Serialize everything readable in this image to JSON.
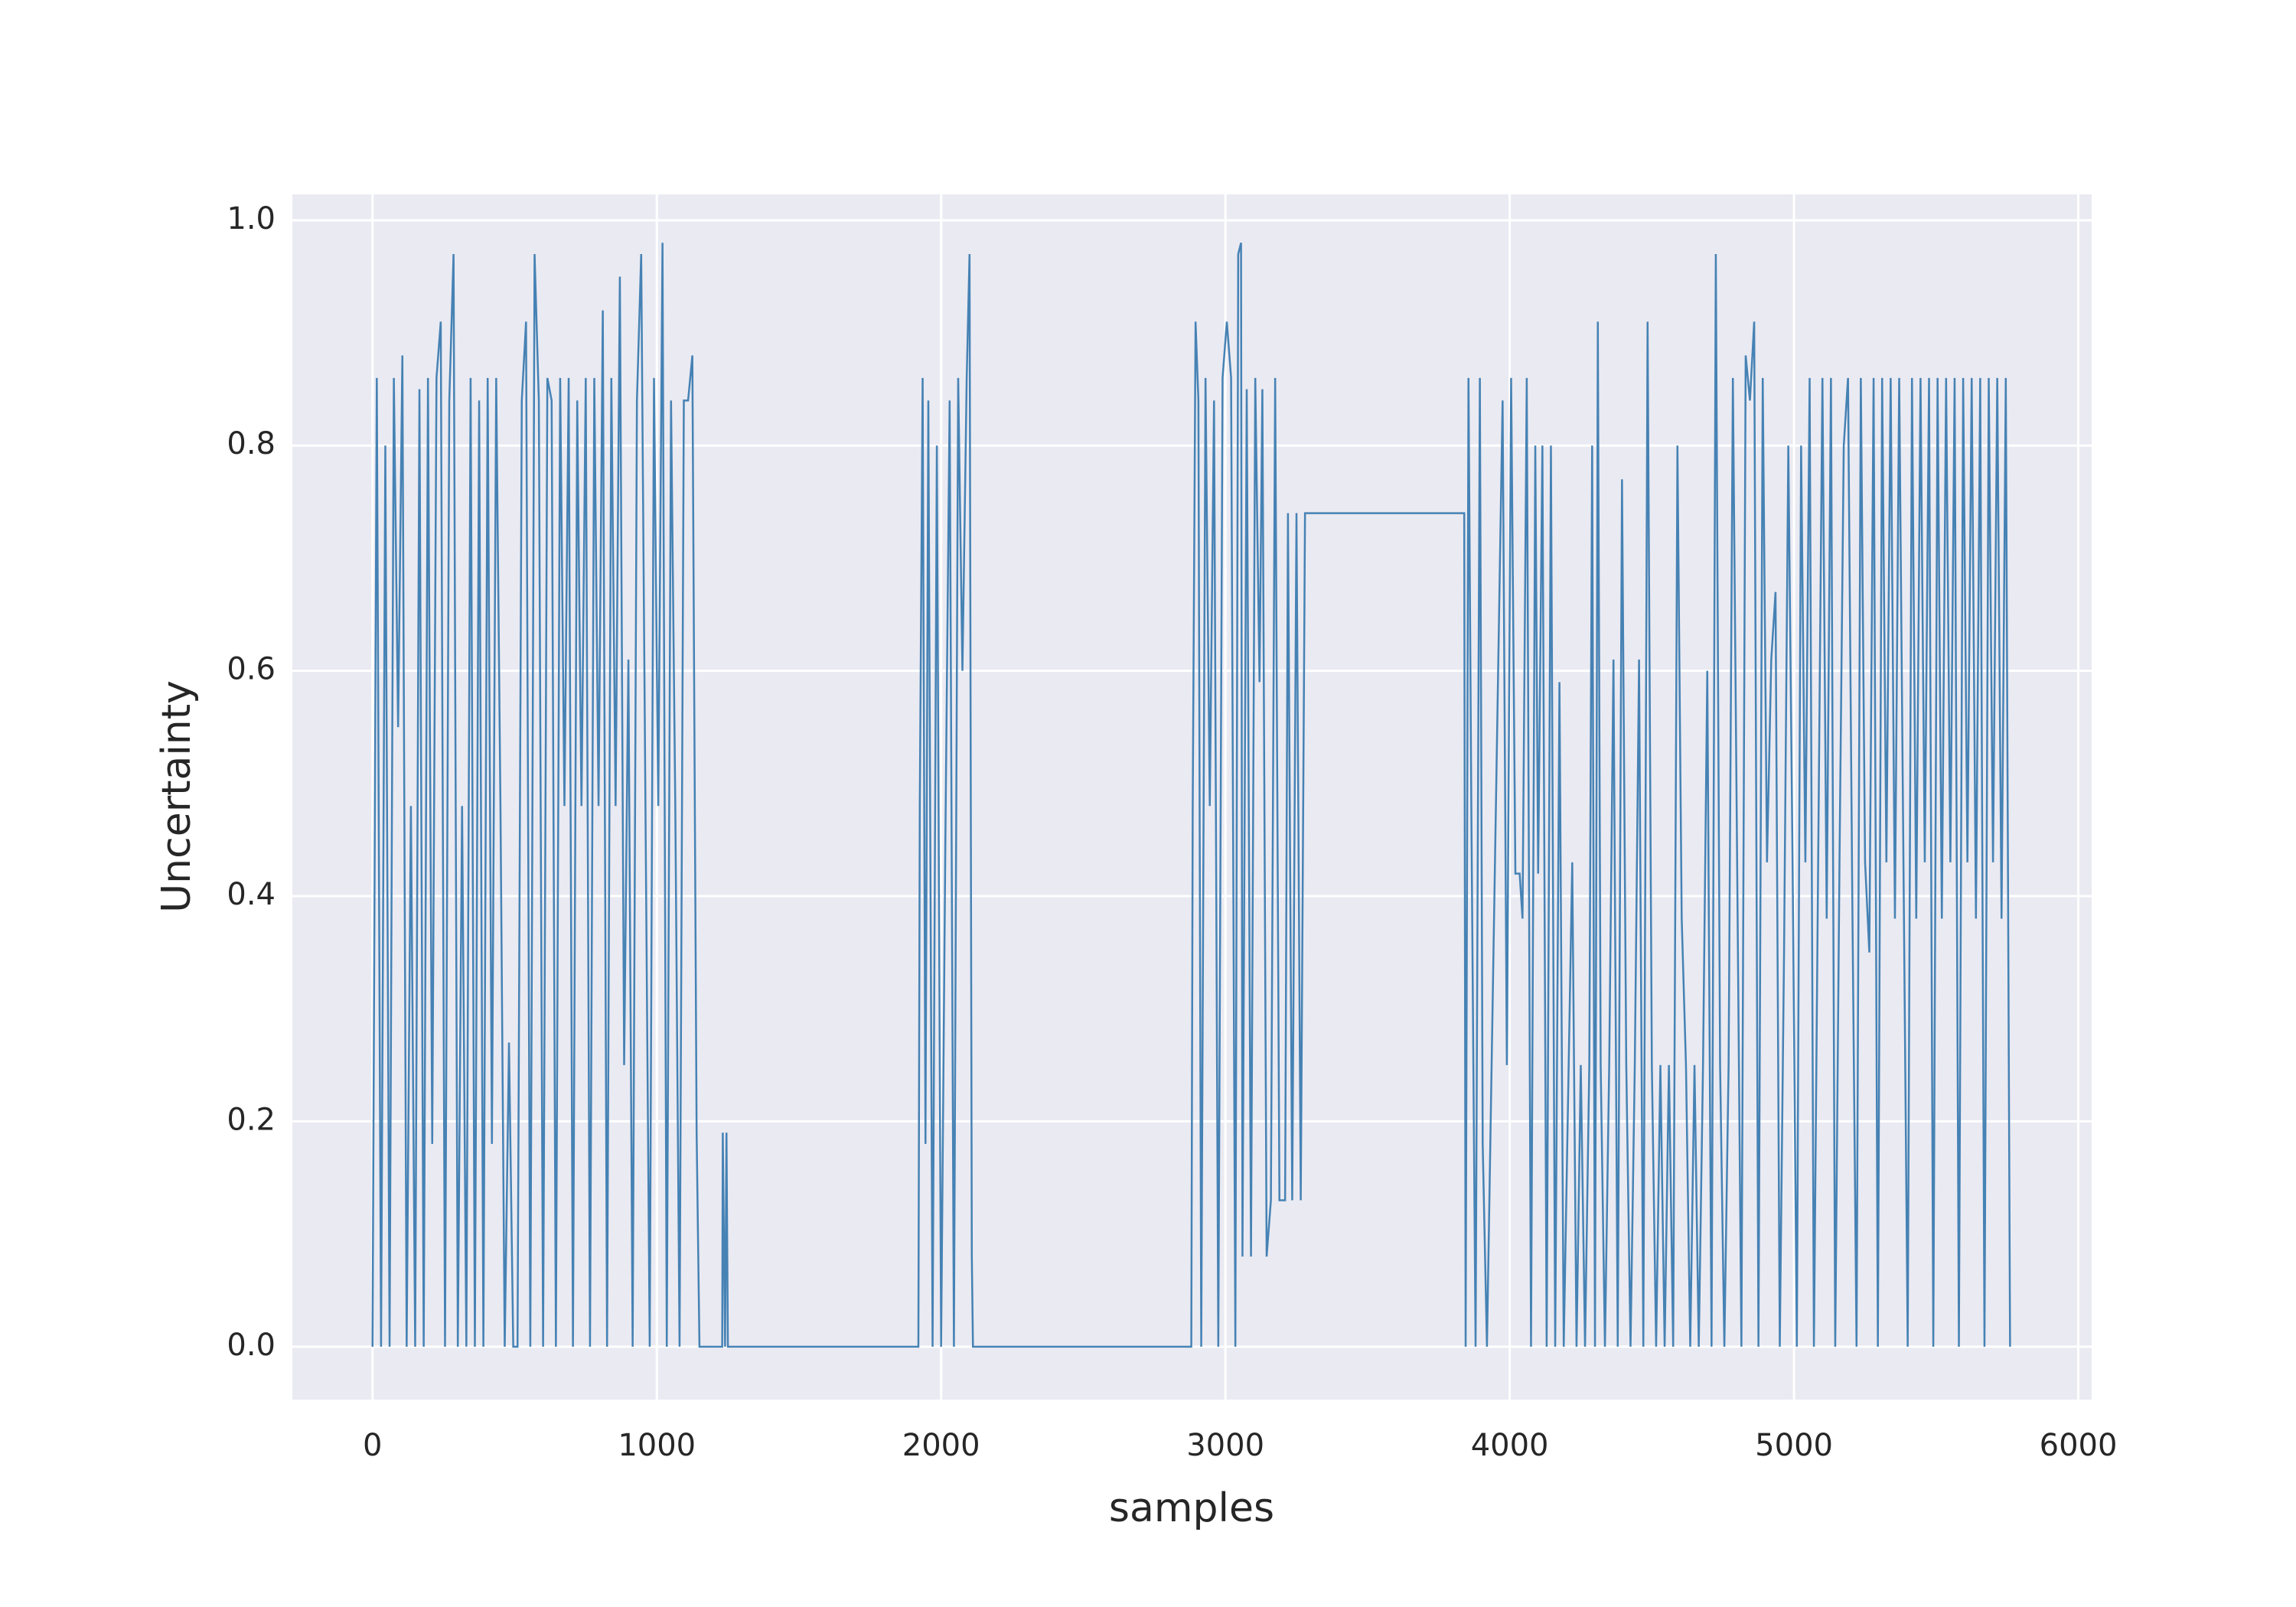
{
  "chart_data": {
    "type": "line",
    "xlabel": "samples",
    "ylabel": "Uncertainty",
    "xlim": [
      -282,
      6047
    ],
    "ylim": [
      -0.047,
      1.023
    ],
    "xticks": [
      0,
      1000,
      2000,
      3000,
      4000,
      5000,
      6000
    ],
    "yticks": [
      {
        "value": 0,
        "label": "0.0"
      },
      {
        "value": 0.2,
        "label": "0.2"
      },
      {
        "value": 0.4,
        "label": "0.4"
      },
      {
        "value": 0.6,
        "label": "0.6"
      },
      {
        "value": 0.8,
        "label": "0.8"
      },
      {
        "value": 1,
        "label": "1.0"
      }
    ],
    "grid": true,
    "color": "#4682b4",
    "x": [
      0,
      15,
      30,
      45,
      60,
      75,
      90,
      105,
      120,
      135,
      150,
      165,
      180,
      195,
      210,
      225,
      240,
      255,
      270,
      285,
      300,
      315,
      330,
      345,
      360,
      375,
      390,
      405,
      420,
      435,
      450,
      465,
      480,
      495,
      510,
      525,
      540,
      555,
      570,
      585,
      600,
      615,
      630,
      645,
      660,
      675,
      690,
      705,
      720,
      735,
      750,
      765,
      780,
      795,
      810,
      825,
      840,
      855,
      870,
      885,
      900,
      915,
      930,
      945,
      960,
      975,
      990,
      1005,
      1020,
      1035,
      1050,
      1065,
      1080,
      1095,
      1110,
      1125,
      1140,
      1150,
      1230,
      1232,
      1240,
      1245,
      1250,
      1920,
      1925,
      1935,
      1945,
      1955,
      1970,
      1985,
      2000,
      2015,
      2030,
      2045,
      2060,
      2075,
      2090,
      2100,
      2108,
      2112,
      2880,
      2885,
      2895,
      2905,
      2915,
      2930,
      2945,
      2960,
      2975,
      2990,
      3005,
      3020,
      3035,
      3045,
      3055,
      3060,
      3075,
      3090,
      3105,
      3120,
      3130,
      3145,
      3160,
      3175,
      3190,
      3210,
      3220,
      3235,
      3250,
      3265,
      3280,
      3840,
      3845,
      3855,
      3865,
      3880,
      3895,
      3905,
      3920,
      3960,
      3975,
      3990,
      4005,
      4020,
      4035,
      4045,
      4060,
      4075,
      4090,
      4100,
      4115,
      4130,
      4145,
      4160,
      4175,
      4190,
      4220,
      4235,
      4250,
      4265,
      4280,
      4290,
      4300,
      4310,
      4320,
      4335,
      4350,
      4365,
      4380,
      4395,
      4410,
      4425,
      4440,
      4455,
      4470,
      4485,
      4500,
      4515,
      4530,
      4545,
      4560,
      4575,
      4590,
      4605,
      4620,
      4635,
      4650,
      4665,
      4680,
      4695,
      4710,
      4725,
      4740,
      4755,
      4770,
      4785,
      4800,
      4815,
      4830,
      4845,
      4860,
      4875,
      4890,
      4905,
      4920,
      4935,
      4950,
      4965,
      4980,
      4995,
      5010,
      5025,
      5040,
      5055,
      5070,
      5085,
      5100,
      5115,
      5130,
      5145,
      5160,
      5175,
      5190,
      5205,
      5220,
      5235,
      5250,
      5265,
      5280,
      5295,
      5310,
      5325,
      5340,
      5355,
      5370,
      5385,
      5400,
      5415,
      5430,
      5445,
      5460,
      5475,
      5490,
      5505,
      5520,
      5535,
      5550,
      5565,
      5580,
      5595,
      5610,
      5625,
      5640,
      5655,
      5670,
      5685,
      5700,
      5715,
      5730,
      5745,
      5760
    ],
    "values": [
      0,
      0.86,
      0,
      0.8,
      0,
      0.86,
      0.55,
      0.88,
      0,
      0.48,
      0,
      0.85,
      0,
      0.86,
      0.18,
      0.86,
      0.91,
      0,
      0.84,
      0.97,
      0,
      0.48,
      0,
      0.86,
      0,
      0.84,
      0,
      0.86,
      0.18,
      0.86,
      0.48,
      0,
      0.27,
      0,
      0,
      0.84,
      0.91,
      0,
      0.97,
      0.84,
      0,
      0.86,
      0.84,
      0,
      0.86,
      0.48,
      0.86,
      0,
      0.84,
      0.48,
      0.86,
      0,
      0.86,
      0.48,
      0.92,
      0,
      0.86,
      0.48,
      0.95,
      0.25,
      0.61,
      0,
      0.84,
      0.97,
      0.48,
      0,
      0.86,
      0.48,
      0.98,
      0,
      0.84,
      0.48,
      0,
      0.84,
      0.84,
      0.88,
      0.19,
      0,
      0,
      0.19,
      0,
      0.19,
      0,
      0,
      0.48,
      0.86,
      0.18,
      0.84,
      0,
      0.8,
      0,
      0.45,
      0.84,
      0,
      0.86,
      0.6,
      0.86,
      0.97,
      0.08,
      0,
      0,
      0.48,
      0.91,
      0.84,
      0,
      0.86,
      0.48,
      0.84,
      0,
      0.86,
      0.91,
      0.86,
      0,
      0.97,
      0.98,
      0.08,
      0.85,
      0.08,
      0.86,
      0.59,
      0.85,
      0.08,
      0.13,
      0.86,
      0.13,
      0.13,
      0.74,
      0.13,
      0.74,
      0.13,
      0.74,
      0.74,
      0,
      0.86,
      0.48,
      0,
      0.86,
      0.18,
      0,
      0.61,
      0.84,
      0.25,
      0.86,
      0.42,
      0.42,
      0.38,
      0.86,
      0,
      0.8,
      0.42,
      0.8,
      0,
      0.8,
      0,
      0.59,
      0,
      0.43,
      0,
      0.25,
      0,
      0.25,
      0.8,
      0,
      0.91,
      0.25,
      0,
      0.25,
      0.61,
      0,
      0.77,
      0.25,
      0,
      0.25,
      0.61,
      0,
      0.91,
      0.25,
      0,
      0.25,
      0,
      0.25,
      0,
      0.8,
      0.38,
      0.25,
      0,
      0.25,
      0,
      0.25,
      0.6,
      0,
      0.97,
      0.25,
      0,
      0.25,
      0.86,
      0.43,
      0,
      0.88,
      0.84,
      0.91,
      0,
      0.86,
      0.43,
      0.61,
      0.67,
      0,
      0.35,
      0.8,
      0.43,
      0,
      0.8,
      0.43,
      0.86,
      0,
      0.43,
      0.86,
      0.38,
      0.86,
      0,
      0.43,
      0.8,
      0.86,
      0.4,
      0,
      0.86,
      0.43,
      0.35,
      0.86,
      0,
      0.86,
      0.43,
      0.86,
      0.38,
      0.86,
      0.43,
      0,
      0.86,
      0.38,
      0.86,
      0.43,
      0.86,
      0,
      0.86,
      0.38,
      0.86,
      0.43,
      0.86,
      0,
      0.86,
      0.43,
      0.86,
      0.38,
      0.86,
      0,
      0.86,
      0.43,
      0.86,
      0.38,
      0.86,
      0
    ]
  }
}
